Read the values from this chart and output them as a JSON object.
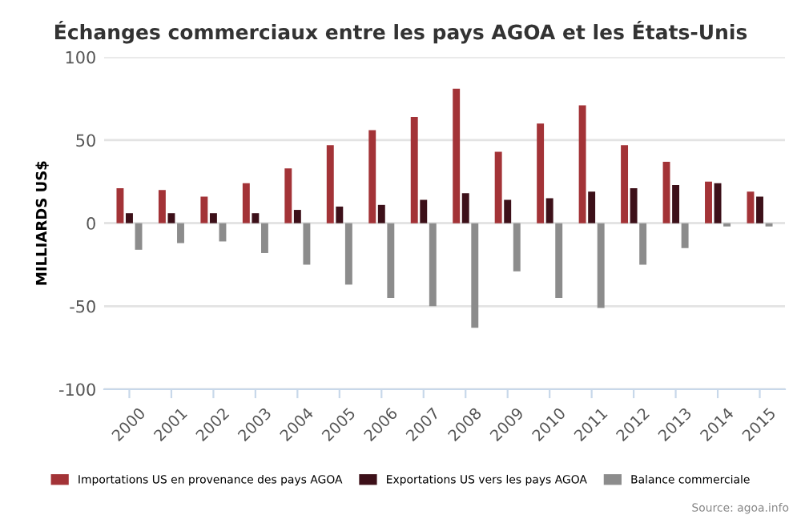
{
  "chart_data": {
    "type": "bar",
    "title": "Échanges commerciaux entre les pays AGOA et les États-Unis",
    "ylabel": "MILLIARDS US$",
    "categories": [
      "2000",
      "2001",
      "2002",
      "2003",
      "2004",
      "2005",
      "2006",
      "2007",
      "2008",
      "2009",
      "2010",
      "2011",
      "2012",
      "2013",
      "2014",
      "2015"
    ],
    "series": [
      {
        "name": "Importations US en provenance des pays AGOA",
        "color": "#a33337",
        "values": [
          21,
          20,
          16,
          24,
          33,
          47,
          56,
          64,
          81,
          43,
          60,
          71,
          47,
          37,
          25,
          19
        ]
      },
      {
        "name": "Exportations US vers les pays AGOA",
        "color": "#3d1019",
        "values": [
          6,
          6,
          6,
          6,
          8,
          10,
          11,
          14,
          18,
          14,
          15,
          19,
          21,
          23,
          24,
          16
        ]
      },
      {
        "name": "Balance commerciale",
        "color": "#8c8c8c",
        "values": [
          -16,
          -12,
          -11,
          -18,
          -25,
          -37,
          -45,
          -50,
          -63,
          -29,
          -45,
          -51,
          -25,
          -15,
          -2,
          -2
        ]
      }
    ],
    "ylim": [
      -100,
      100
    ],
    "yticks": [
      -100,
      -50,
      0,
      50,
      100
    ],
    "grid": "y",
    "legend": "bottom",
    "annotations": [
      "Source: agoa.info"
    ]
  }
}
